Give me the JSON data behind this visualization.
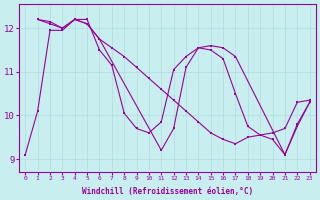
{
  "xlabel": "Windchill (Refroidissement éolien,°C)",
  "bg_color": "#c8eef0",
  "grid_color": "#b0dde0",
  "line_color": "#990099",
  "xlim": [
    -0.5,
    23.5
  ],
  "ylim": [
    8.7,
    12.55
  ],
  "yticks": [
    9,
    10,
    11,
    12
  ],
  "xticks": [
    0,
    1,
    2,
    3,
    4,
    5,
    6,
    7,
    8,
    9,
    10,
    11,
    12,
    13,
    14,
    15,
    16,
    17,
    18,
    19,
    20,
    21,
    22,
    23
  ],
  "series": [
    {
      "x": [
        0,
        1,
        2,
        3,
        4,
        5,
        6,
        7,
        8,
        9,
        10,
        11,
        12,
        13,
        14,
        15,
        16,
        17,
        18,
        19,
        20,
        21,
        22,
        23
      ],
      "y": [
        9.1,
        10.1,
        11.95,
        11.95,
        12.2,
        12.2,
        11.5,
        11.15,
        10.05,
        9.7,
        9.6,
        9.85,
        11.05,
        11.35,
        11.55,
        11.5,
        11.3,
        10.5,
        9.75,
        9.55,
        9.45,
        9.1,
        9.8,
        10.3
      ]
    },
    {
      "x": [
        1,
        2,
        3,
        4,
        5,
        6,
        7,
        8,
        9,
        10,
        11,
        12,
        13,
        14,
        15,
        16,
        17,
        18,
        19,
        20,
        21,
        22,
        23
      ],
      "y": [
        12.2,
        12.15,
        12.0,
        12.2,
        12.1,
        11.75,
        11.55,
        11.35,
        11.1,
        10.85,
        10.6,
        10.35,
        10.1,
        9.85,
        9.6,
        9.45,
        9.35,
        9.5,
        9.55,
        9.6,
        9.7,
        10.3,
        10.35
      ]
    },
    {
      "x": [
        1,
        2,
        3,
        4,
        5,
        6,
        11,
        12,
        13,
        14,
        15,
        16,
        17,
        21,
        22,
        23
      ],
      "y": [
        12.2,
        12.1,
        12.0,
        12.2,
        12.1,
        11.75,
        9.2,
        9.7,
        11.1,
        11.55,
        11.6,
        11.55,
        11.35,
        9.1,
        9.75,
        10.3
      ]
    }
  ]
}
